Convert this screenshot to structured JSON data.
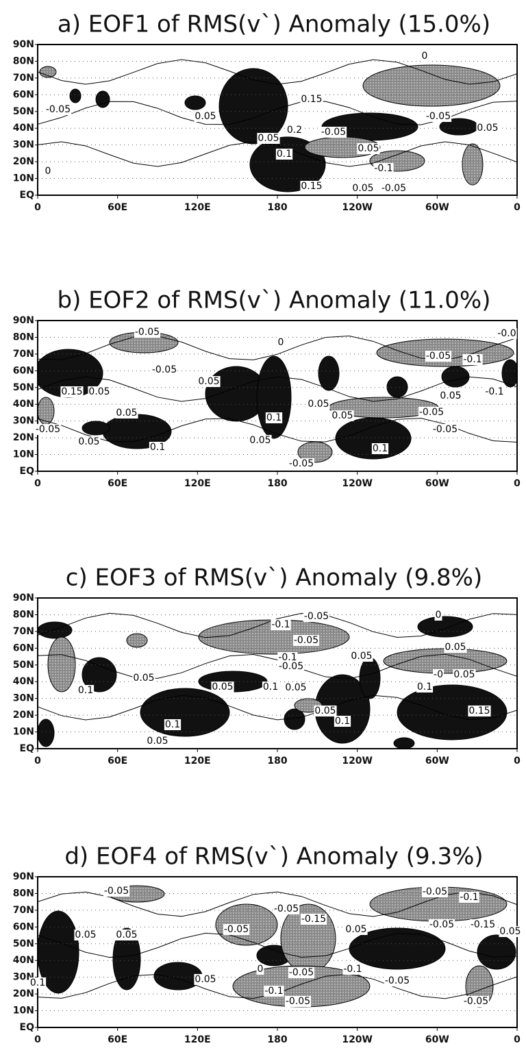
{
  "panels": [
    {
      "title": "a) EOF1 of RMS(v`) Anomaly (15.0%)",
      "y_axis_labels": [
        "90N",
        "80N",
        "70N",
        "60N",
        "50N",
        "40N",
        "30N",
        "20N",
        "10N",
        "EQ"
      ],
      "x_axis_labels": [
        "0",
        "60E",
        "120E",
        "180",
        "120W",
        "60W",
        "0"
      ],
      "contour_labels": [
        "0",
        "-0.05",
        "0.05",
        "0.05",
        "0.2",
        "-0.05",
        "0.15",
        "0.1",
        "0.05",
        "-0.1",
        "0.15",
        "0.05",
        "-0.05",
        "-0.05",
        "0.05",
        "0"
      ]
    },
    {
      "title": "b) EOF2 of RMS(v`) Anomaly (11.0%)",
      "y_axis_labels": [
        "90N",
        "80N",
        "70N",
        "60N",
        "50N",
        "40N",
        "30N",
        "20N",
        "10N",
        "EQ"
      ],
      "x_axis_labels": [
        "0",
        "60E",
        "120E",
        "180",
        "120W",
        "60W",
        "0"
      ],
      "contour_labels": [
        "-0.05",
        "-0.05",
        "0.05",
        "0.15",
        "0.05",
        "0.05",
        "-0.05",
        "0.05",
        "0.1",
        "0.1",
        "0.05",
        "0.05",
        "0.05",
        "0.1",
        "-0.05",
        "-0.05",
        "-0.1",
        "0.05",
        "-0.1",
        "-0.05",
        "-0.05",
        "-0.0",
        "0"
      ]
    },
    {
      "title": "c) EOF3 of RMS(v`) Anomaly (9.8%)",
      "y_axis_labels": [
        "90N",
        "80N",
        "70N",
        "60N",
        "50N",
        "40N",
        "30N",
        "20N",
        "10N",
        "EQ"
      ],
      "x_axis_labels": [
        "0",
        "60E",
        "120E",
        "180",
        "120W",
        "60W",
        "0"
      ],
      "contour_labels": [
        "-0.05",
        "-0.1",
        "-0.05",
        "-0.1",
        "-0.05",
        "0.05",
        "0.05",
        "0.05",
        "0.1",
        "0.05",
        "0.1",
        "0.05",
        "0.1",
        "0.1",
        "0.05",
        "0.05",
        "0.05",
        "0.1",
        "0.15",
        "-0",
        "0"
      ]
    },
    {
      "title": "d) EOF4 of RMS(v`) Anomaly (9.3%)",
      "y_axis_labels": [
        "90N",
        "80N",
        "70N",
        "60N",
        "50N",
        "40N",
        "30N",
        "20N",
        "10N",
        "EQ"
      ],
      "x_axis_labels": [
        "0",
        "60E",
        "120E",
        "180",
        "120W",
        "60W",
        "0"
      ],
      "contour_labels": [
        "-0.05",
        "-0.05",
        "-0.1",
        "-0.05",
        "-0.15",
        "-0.05",
        "0.05",
        "0.05",
        "0.05",
        "-0.05",
        "-0.15",
        "0.05",
        "0.1",
        "0.05",
        "-0.05",
        "-0.1",
        "-0.05",
        "-0.1",
        "-0.05",
        "-0.05",
        "0"
      ]
    }
  ]
}
